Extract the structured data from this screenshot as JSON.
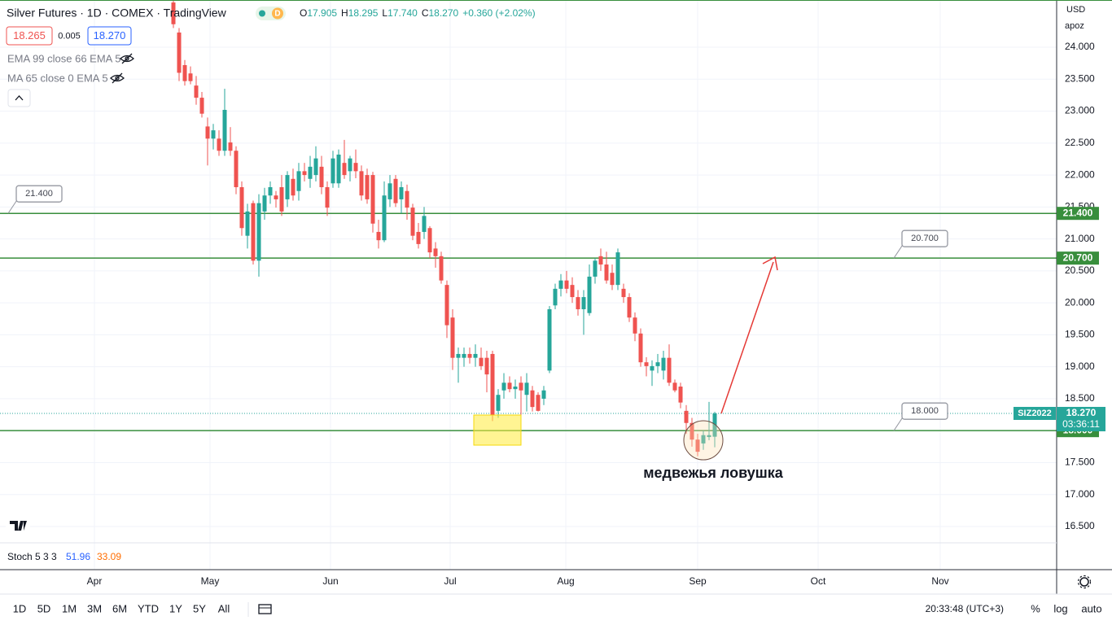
{
  "header": {
    "title": "Silver Futures · 1D · COMEX · TradingView",
    "badge": "D",
    "ohlc": [
      {
        "label": "O",
        "value": "17.905"
      },
      {
        "label": "H",
        "value": "18.295"
      },
      {
        "label": "L",
        "value": "17.740"
      },
      {
        "label": "C",
        "value": "18.270"
      }
    ],
    "change": "+0.360 (+2.02%)",
    "bid": "18.265",
    "spread": "0.005",
    "ask": "18.270",
    "indicators": [
      "EMA 99 close 66 EMA 5",
      "MA 65 close 0 EMA 5"
    ],
    "currency": "USD",
    "scale_mode": "apoz"
  },
  "chart_data": {
    "type": "candlestick",
    "up_color": "#26a69a",
    "down_color": "#ef5350",
    "level_color": "#388e3c",
    "grid": true,
    "ylim": [
      16.245,
      24.739
    ],
    "xlim": [
      -30.43,
      155
    ],
    "yticks": [
      {
        "value": 16.5,
        "label": "16.500"
      },
      {
        "value": 17,
        "label": "17.000"
      },
      {
        "value": 17.5,
        "label": "17.500"
      },
      {
        "value": 18,
        "label": "18.000"
      },
      {
        "value": 18.5,
        "label": "18.500"
      },
      {
        "value": 19,
        "label": "19.000"
      },
      {
        "value": 19.5,
        "label": "19.500"
      },
      {
        "value": 20,
        "label": "20.000"
      },
      {
        "value": 20.5,
        "label": "20.500"
      },
      {
        "value": 21,
        "label": "21.000"
      },
      {
        "value": 21.5,
        "label": "21.500"
      },
      {
        "value": 22,
        "label": "22.000"
      },
      {
        "value": 22.5,
        "label": "22.500"
      },
      {
        "value": 23,
        "label": "23.000"
      },
      {
        "value": 23.5,
        "label": "23.500"
      },
      {
        "value": 24,
        "label": "24.000"
      }
    ],
    "xticks": [
      {
        "value": -13.86,
        "label": "Apr"
      },
      {
        "value": 6.43,
        "label": "May"
      },
      {
        "value": 27.57,
        "label": "Jun"
      },
      {
        "value": 48.57,
        "label": "Jul"
      },
      {
        "value": 68.86,
        "label": "Aug"
      },
      {
        "value": 92.0,
        "label": "Sep"
      },
      {
        "value": 113.14,
        "label": "Oct"
      },
      {
        "value": 134.57,
        "label": "Nov"
      }
    ],
    "levels": [
      {
        "value": 21.4,
        "label": "21.400"
      },
      {
        "value": 20.7,
        "label": "20.700"
      },
      {
        "value": 18.0,
        "label": "18.000"
      }
    ],
    "last_price": {
      "value": 18.27,
      "label": "18.270"
    },
    "symbol": "SIZ2022",
    "countdown": "03:36:11",
    "annotation": "медвежья ловушка",
    "ohlc": [
      [
        24.7,
        24.74,
        24.3,
        24.36
      ],
      [
        24.23,
        24.3,
        23.47,
        23.6
      ],
      [
        23.72,
        23.8,
        23.4,
        23.47
      ],
      [
        23.59,
        23.7,
        23.42,
        23.47
      ],
      [
        23.4,
        23.55,
        23.1,
        23.21
      ],
      [
        23.21,
        23.3,
        22.9,
        22.96
      ],
      [
        22.76,
        22.9,
        22.15,
        22.57
      ],
      [
        22.57,
        22.8,
        22.4,
        22.7
      ],
      [
        22.57,
        22.7,
        22.3,
        22.38
      ],
      [
        22.38,
        23.35,
        22.3,
        23.02
      ],
      [
        22.51,
        22.75,
        22.3,
        22.38
      ],
      [
        22.38,
        22.45,
        21.7,
        21.81
      ],
      [
        21.81,
        21.9,
        21.05,
        21.17
      ],
      [
        21.05,
        21.55,
        20.85,
        21.43
      ],
      [
        21.56,
        21.6,
        20.6,
        20.66
      ],
      [
        20.66,
        21.7,
        20.41,
        21.56
      ],
      [
        21.43,
        21.8,
        21.3,
        21.68
      ],
      [
        21.68,
        21.9,
        21.55,
        21.81
      ],
      [
        21.68,
        21.75,
        21.49,
        21.62
      ],
      [
        21.81,
        22.0,
        21.36,
        21.43
      ],
      [
        21.62,
        22.06,
        21.5,
        22.0
      ],
      [
        21.94,
        22.1,
        21.6,
        21.68
      ],
      [
        21.75,
        22.19,
        21.6,
        22.06
      ],
      [
        22.06,
        22.19,
        21.9,
        22.0
      ],
      [
        21.94,
        22.3,
        21.8,
        22.13
      ],
      [
        22.0,
        22.45,
        21.9,
        22.26
      ],
      [
        22.13,
        22.3,
        21.7,
        21.81
      ],
      [
        21.81,
        21.9,
        21.36,
        21.49
      ],
      [
        21.87,
        22.38,
        21.8,
        22.26
      ],
      [
        21.87,
        22.4,
        21.8,
        22.32
      ],
      [
        22.19,
        22.55,
        21.94,
        22.0
      ],
      [
        22.06,
        22.3,
        21.9,
        22.26
      ],
      [
        22.19,
        22.4,
        21.95,
        22.06
      ],
      [
        22.06,
        22.15,
        21.6,
        21.68
      ],
      [
        22.0,
        22.1,
        21.55,
        21.62
      ],
      [
        22.0,
        22.05,
        21.1,
        21.24
      ],
      [
        21.11,
        21.3,
        20.85,
        20.98
      ],
      [
        20.98,
        21.9,
        20.95,
        21.68
      ],
      [
        21.62,
        22.0,
        21.5,
        21.87
      ],
      [
        21.94,
        22.0,
        21.5,
        21.56
      ],
      [
        21.62,
        21.9,
        21.4,
        21.81
      ],
      [
        21.75,
        21.85,
        21.3,
        21.49
      ],
      [
        21.49,
        21.55,
        20.98,
        21.05
      ],
      [
        21.11,
        21.25,
        20.85,
        20.92
      ],
      [
        21.11,
        21.5,
        21.0,
        21.36
      ],
      [
        21.17,
        21.2,
        20.7,
        20.79
      ],
      [
        20.85,
        20.95,
        20.55,
        20.73
      ],
      [
        20.73,
        20.8,
        20.3,
        20.35
      ],
      [
        20.28,
        20.35,
        19.45,
        19.65
      ],
      [
        19.77,
        19.9,
        18.95,
        19.14
      ],
      [
        19.14,
        19.3,
        18.75,
        19.2
      ],
      [
        19.14,
        19.3,
        19.0,
        19.2
      ],
      [
        19.2,
        19.3,
        19.05,
        19.14
      ],
      [
        19.14,
        19.35,
        19.0,
        19.2
      ],
      [
        19.14,
        19.3,
        18.95,
        19.01
      ],
      [
        19.14,
        19.25,
        18.6,
        18.88
      ],
      [
        19.2,
        19.25,
        18.15,
        18.24
      ],
      [
        18.31,
        18.65,
        18.2,
        18.56
      ],
      [
        18.63,
        18.9,
        18.5,
        18.75
      ],
      [
        18.75,
        18.85,
        18.6,
        18.65
      ],
      [
        18.65,
        18.8,
        18.5,
        18.69
      ],
      [
        18.75,
        18.85,
        18.2,
        18.63
      ],
      [
        18.56,
        18.9,
        18.3,
        18.75
      ],
      [
        18.63,
        18.7,
        18.3,
        18.37
      ],
      [
        18.56,
        18.6,
        18.3,
        18.31
      ],
      [
        18.5,
        18.7,
        18.4,
        18.63
      ],
      [
        18.94,
        19.95,
        18.9,
        19.9
      ],
      [
        19.96,
        20.3,
        19.9,
        20.22
      ],
      [
        20.22,
        20.45,
        20.1,
        20.35
      ],
      [
        20.35,
        20.5,
        20.15,
        20.22
      ],
      [
        20.28,
        20.4,
        20.0,
        20.09
      ],
      [
        20.09,
        20.2,
        19.8,
        19.9
      ],
      [
        19.9,
        20.2,
        19.5,
        20.09
      ],
      [
        19.84,
        20.6,
        19.8,
        20.41
      ],
      [
        20.41,
        20.7,
        20.3,
        20.66
      ],
      [
        20.73,
        20.85,
        20.5,
        20.6
      ],
      [
        20.6,
        20.8,
        20.3,
        20.35
      ],
      [
        20.47,
        20.6,
        20.2,
        20.28
      ],
      [
        20.28,
        20.85,
        20.2,
        20.79
      ],
      [
        20.22,
        20.3,
        20.0,
        20.09
      ],
      [
        20.09,
        20.15,
        19.7,
        19.77
      ],
      [
        19.77,
        19.85,
        19.4,
        19.52
      ],
      [
        19.52,
        19.6,
        19.0,
        19.07
      ],
      [
        19.07,
        19.15,
        18.85,
        19.01
      ],
      [
        18.94,
        19.1,
        18.7,
        19.01
      ],
      [
        19.01,
        19.2,
        18.9,
        19.07
      ],
      [
        18.94,
        19.25,
        18.8,
        19.14
      ],
      [
        19.14,
        19.35,
        18.7,
        18.75
      ],
      [
        18.75,
        18.8,
        18.6,
        18.63
      ],
      [
        18.69,
        18.75,
        18.35,
        18.44
      ],
      [
        18.31,
        18.4,
        17.95,
        18.12
      ],
      [
        18.12,
        18.2,
        17.75,
        17.86
      ],
      [
        17.86,
        17.95,
        17.6,
        17.67
      ],
      [
        17.8,
        18.0,
        17.7,
        17.93
      ],
      [
        17.9,
        18.45,
        17.85,
        17.93
      ],
      [
        17.905,
        18.295,
        17.74,
        18.27
      ]
    ]
  },
  "stoch": {
    "label": "Stoch 5 3 3",
    "k": "51.96",
    "d": "33.09"
  },
  "toolbar": {
    "ranges": [
      "1D",
      "5D",
      "1M",
      "3M",
      "6M",
      "YTD",
      "1Y",
      "5Y",
      "All"
    ],
    "clock": "20:33:48 (UTC+3)",
    "percent": "%",
    "log": "log",
    "auto": "auto"
  }
}
